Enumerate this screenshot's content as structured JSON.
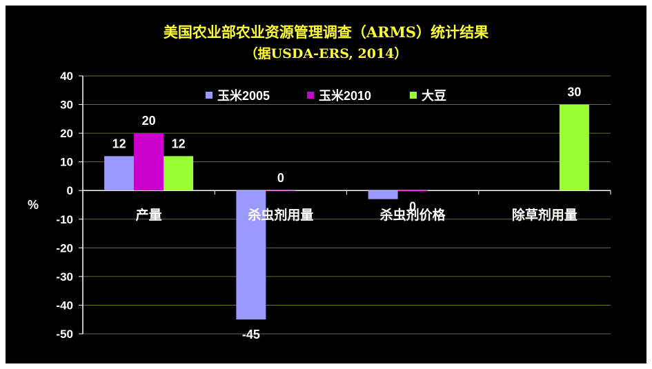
{
  "chart_data": {
    "type": "bar",
    "title": "美国农业部农业资源管理调查（ARMS）统计结果",
    "subtitle": "（据USDA-ERS, 2014）",
    "ylabel": "%",
    "xlabel": "",
    "ylim": [
      -50,
      40
    ],
    "yticks": [
      40,
      30,
      20,
      10,
      0,
      -10,
      -20,
      -30,
      -40,
      -50
    ],
    "categories": [
      "产量",
      "杀虫剂用量",
      "杀虫剂价格",
      "除草剂用量"
    ],
    "series": [
      {
        "name": "玉米2005",
        "color": "#9999ff",
        "values": [
          12,
          -45,
          -3,
          null
        ]
      },
      {
        "name": "玉米2010",
        "color": "#cc00cc",
        "values": [
          20,
          0,
          -0.3,
          null
        ]
      },
      {
        "name": "大豆",
        "color": "#99ff33",
        "values": [
          12,
          null,
          null,
          30
        ]
      }
    ],
    "data_labels": [
      {
        "series": 0,
        "category": 0,
        "text": "12"
      },
      {
        "series": 1,
        "category": 0,
        "text": "20"
      },
      {
        "series": 2,
        "category": 0,
        "text": "12"
      },
      {
        "series": 0,
        "category": 1,
        "text": "-45"
      },
      {
        "series": 1,
        "category": 1,
        "text": "0"
      },
      {
        "series": 1,
        "category": 2,
        "text": "0"
      },
      {
        "series": 2,
        "category": 3,
        "text": "30"
      }
    ],
    "grid": true,
    "legend": "top"
  }
}
